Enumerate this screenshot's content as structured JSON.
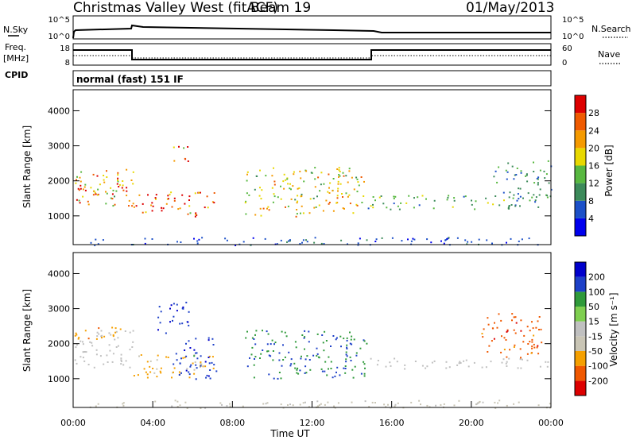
{
  "header": {
    "station": "Christmas Valley West (fitACF)",
    "beam": "Beam 19",
    "date": "01/May/2013"
  },
  "status_panels": {
    "nsky_label": "N.Sky",
    "nsearch_label": "N.Search",
    "noise_ticks": [
      "10^5",
      "10^0"
    ],
    "freq_label": "Freq.",
    "freq_unit": "[MHz]",
    "freq_ticks": [
      "18",
      "8"
    ],
    "nave_label": "Nave",
    "nave_ticks": [
      "60",
      "0"
    ],
    "cpid_label": "CPID",
    "cpid_value": "normal (fast) 151 IF"
  },
  "colors": {
    "power_scale": [
      "#0000ee",
      "#1c50c8",
      "#3c8a5a",
      "#58b840",
      "#e8d800",
      "#f59a00",
      "#ef5a00",
      "#dd0000"
    ],
    "velocity_scale": [
      "#dd0000",
      "#f05800",
      "#f5a000",
      "#c9c5b5",
      "#c0c0c0",
      "#7fcf50",
      "#2f9a3a",
      "#1d40c8",
      "#0000cc"
    ]
  },
  "chart_data": [
    {
      "type": "heatmap",
      "panel": "power",
      "ylabel": "Slant Range [km]",
      "ylim": [
        180,
        4600
      ],
      "yticks": [
        "1000",
        "2000",
        "3000",
        "4000"
      ],
      "xlim": [
        "00:00",
        "24:00"
      ],
      "colorbar_label": "Power [dB]",
      "colorbar_ticks": [
        "4",
        "8",
        "12",
        "16",
        "20",
        "24",
        "28"
      ],
      "colorbar_range": [
        0,
        32
      ],
      "scatter_bands": [
        {
          "t0": 0.0,
          "t1": 3.0,
          "r0": 1300,
          "r1": 2400,
          "value": 22
        },
        {
          "t0": 0.0,
          "t1": 2.5,
          "r0": 1500,
          "r1": 1900,
          "value": 28
        },
        {
          "t0": 3.0,
          "t1": 7.2,
          "r0": 1000,
          "r1": 1700,
          "value": 26
        },
        {
          "t0": 5.0,
          "t1": 5.8,
          "r0": 2500,
          "r1": 3100,
          "value": 24
        },
        {
          "t0": 8.6,
          "t1": 14.8,
          "r0": 1000,
          "r1": 2400,
          "value": 18
        },
        {
          "t0": 14.8,
          "t1": 24.0,
          "r0": 1200,
          "r1": 1600,
          "value": 12
        },
        {
          "t0": 21.0,
          "t1": 24.0,
          "r0": 1500,
          "r1": 2600,
          "value": 10
        },
        {
          "t0": 0.0,
          "t1": 24.0,
          "r0": 180,
          "r1": 400,
          "value": 6
        }
      ]
    },
    {
      "type": "heatmap",
      "panel": "velocity",
      "xlabel": "Time UT",
      "ylabel": "Slant Range [km]",
      "ylim": [
        180,
        4600
      ],
      "yticks": [
        "1000",
        "2000",
        "3000",
        "4000"
      ],
      "xticks": [
        "00:00",
        "04:00",
        "08:00",
        "12:00",
        "16:00",
        "20:00",
        "00:00"
      ],
      "colorbar_label": "Velocity [m s⁻¹]",
      "colorbar_ticks": [
        "200",
        "100",
        "50",
        "15",
        "-15",
        "-50",
        "-100",
        "-200"
      ],
      "scatter_bands": [
        {
          "t0": 0.0,
          "t1": 3.0,
          "r0": 1300,
          "r1": 2400,
          "value": 0
        },
        {
          "t0": 0.0,
          "t1": 2.5,
          "r0": 2100,
          "r1": 2500,
          "value": -80
        },
        {
          "t0": 3.0,
          "t1": 7.2,
          "r0": 1000,
          "r1": 1700,
          "value": -60
        },
        {
          "t0": 4.2,
          "t1": 5.8,
          "r0": 2300,
          "r1": 3200,
          "value": 180
        },
        {
          "t0": 5.0,
          "t1": 7.2,
          "r0": 1000,
          "r1": 2200,
          "value": 150
        },
        {
          "t0": 8.6,
          "t1": 14.8,
          "r0": 1000,
          "r1": 2400,
          "value": 90
        },
        {
          "t0": 14.8,
          "t1": 24.0,
          "r0": 1300,
          "r1": 1600,
          "value": 0
        },
        {
          "t0": 20.5,
          "t1": 23.5,
          "r0": 1600,
          "r1": 2900,
          "value": -150
        },
        {
          "t0": 0.0,
          "t1": 24.0,
          "r0": 180,
          "r1": 400,
          "value": -20
        }
      ]
    }
  ]
}
